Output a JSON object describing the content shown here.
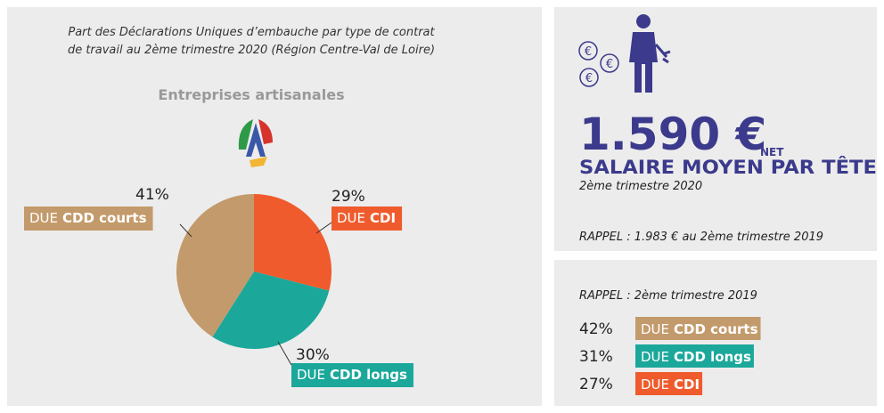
{
  "chart_data": {
    "type": "pie",
    "title_lines": [
      "Part des Déclarations Uniques d’embauche par type de contrat",
      "de travail au 2ème trimestre 2020  (Région Centre-Val de Loire)"
    ],
    "subtitle": "Entreprises artisanales",
    "category_prefix": "DUE",
    "categories": [
      "CDI",
      "CDD longs",
      "CDD courts"
    ],
    "values": [
      29,
      30,
      41
    ],
    "value_labels": [
      "29%",
      "30%",
      "41%"
    ],
    "colors": [
      "#ef5b2c",
      "#1ba89b",
      "#c39a6b"
    ]
  },
  "salary": {
    "amount": "1.590 €",
    "unit": "NET",
    "label": "SALAIRE MOYEN PAR TÊTE",
    "period": "2ème trimestre 2020",
    "reminder": "RAPPEL :  1.983 € au 2ème trimestre 2019"
  },
  "reminder": {
    "title": "RAPPEL : 2ème trimestre 2019",
    "items": [
      {
        "percent": "42%",
        "name": "CDD courts",
        "color": "#c39a6b"
      },
      {
        "percent": "31%",
        "name": "CDD longs",
        "color": "#1ba89b"
      },
      {
        "percent": "27%",
        "name": "CDI",
        "color": "#ef5b2c"
      }
    ]
  }
}
